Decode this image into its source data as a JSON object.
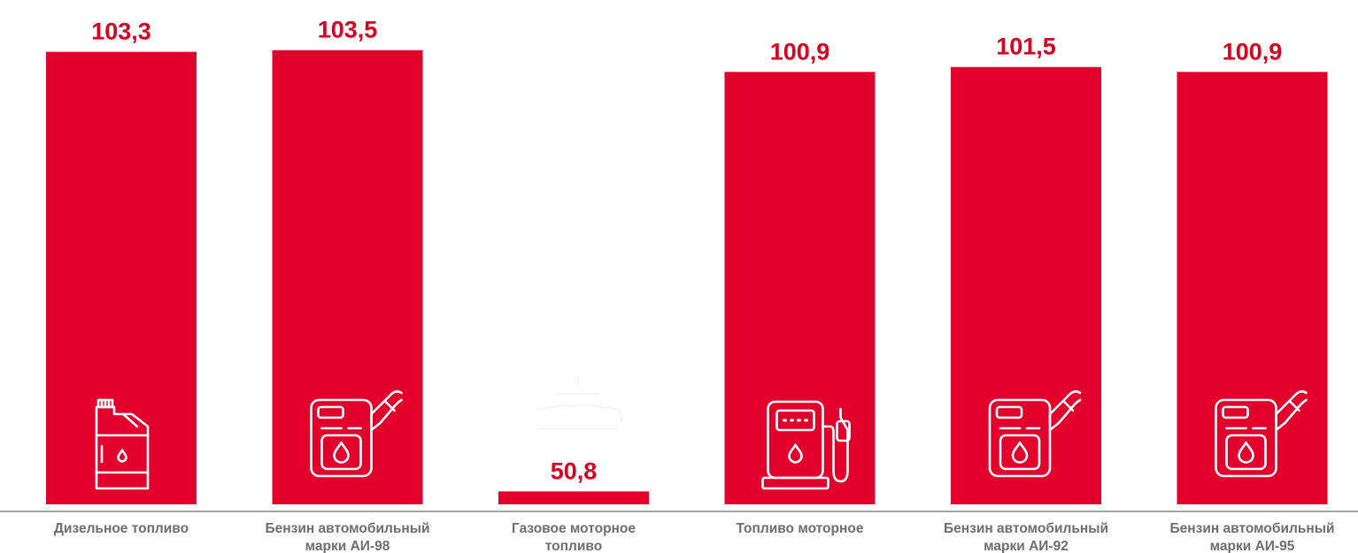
{
  "chart_data": {
    "type": "bar",
    "categories": [
      "Дизельное топливо",
      "Бензин автомобильный марки АИ-98",
      "Газовое моторное топливо",
      "Топливо моторное",
      "Бензин автомобильный марки АИ-92",
      "Бензин автомобильный марки АИ-95"
    ],
    "category_lines": [
      [
        "Дизельное топливо"
      ],
      [
        "Бензин автомобильный",
        "марки АИ-98"
      ],
      [
        "Газовое моторное",
        "топливо"
      ],
      [
        "Топливо моторное"
      ],
      [
        "Бензин автомобильный",
        "марки АИ-92"
      ],
      [
        "Бензин автомобильный",
        "марки АИ-95"
      ]
    ],
    "values": [
      103.3,
      103.5,
      50.8,
      100.9,
      101.5,
      100.9
    ],
    "value_labels": [
      "103,3",
      "103,5",
      "50,8",
      "100,9",
      "101,5",
      "100,9"
    ],
    "icons": [
      "jerrycan-icon",
      "fuel-can-icon",
      "gas-cylinder-icon",
      "fuel-pump-icon",
      "fuel-can-icon",
      "fuel-can-icon"
    ],
    "title": "",
    "xlabel": "",
    "ylabel": "",
    "ylim": [
      50,
      104
    ],
    "grid": false,
    "legend": "none",
    "colors": {
      "bar": "#e3002b",
      "value_label": "#d9001f",
      "axis": "#a6a6a6",
      "category_text": "#6e6e6e",
      "icon_stroke": "#ffffff"
    }
  }
}
